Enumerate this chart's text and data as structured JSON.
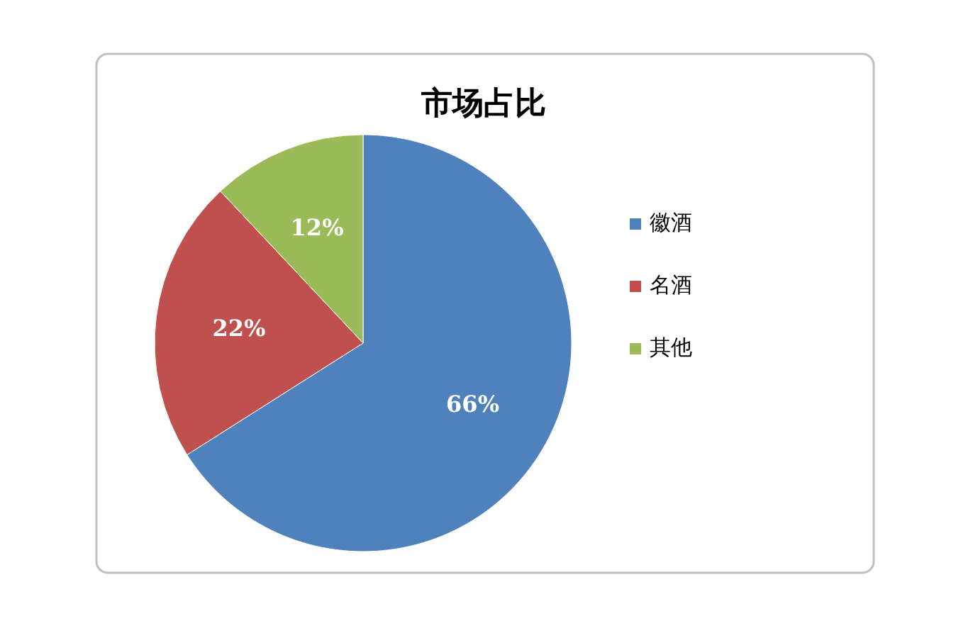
{
  "chart_data": {
    "type": "pie",
    "title": "市场占比",
    "categories": [
      "徽酒",
      "名酒",
      "其他"
    ],
    "values": [
      66,
      22,
      12
    ],
    "colors": [
      "#4f81bd",
      "#c0504d",
      "#9bbb59"
    ],
    "value_labels": [
      "66%",
      "22%",
      "12%"
    ],
    "legend": "right"
  }
}
